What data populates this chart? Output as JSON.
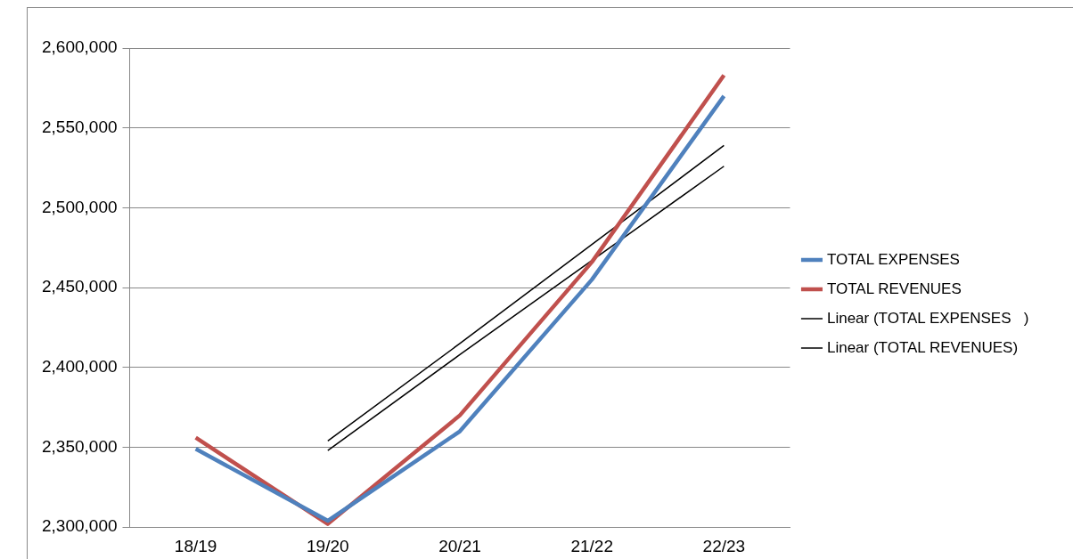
{
  "chart_data": {
    "type": "line",
    "categories": [
      "18/19",
      "19/20",
      "20/21",
      "21/22",
      "22/23"
    ],
    "series": [
      {
        "name": "TOTAL EXPENSES",
        "color": "#4f81bd",
        "values": [
          2349000,
          2304000,
          2360000,
          2455000,
          2570000
        ]
      },
      {
        "name": "TOTAL REVENUES",
        "color": "#c0504d",
        "values": [
          2356000,
          2302000,
          2370000,
          2466000,
          2583000
        ]
      },
      {
        "name": "Linear (TOTAL EXPENSES   )",
        "color": "#000000",
        "type": "line",
        "values": [
          null,
          2348000,
          2408000,
          2467000,
          2526000
        ]
      },
      {
        "name": "Linear (TOTAL REVENUES)",
        "color": "#000000",
        "type": "line",
        "values": [
          null,
          2354000,
          2415000,
          2477000,
          2539000
        ]
      }
    ],
    "ylim": [
      2300000,
      2600000
    ],
    "yticks": [
      {
        "value": 2300000,
        "label": "2,300,000"
      },
      {
        "value": 2350000,
        "label": "2,350,000"
      },
      {
        "value": 2400000,
        "label": "2,400,000"
      },
      {
        "value": 2450000,
        "label": "2,450,000"
      },
      {
        "value": 2500000,
        "label": "2,500,000"
      },
      {
        "value": 2550000,
        "label": "2,550,000"
      },
      {
        "value": 2600000,
        "label": "2,600,000"
      }
    ],
    "grid": "y",
    "legend": "right",
    "marker": "none"
  }
}
